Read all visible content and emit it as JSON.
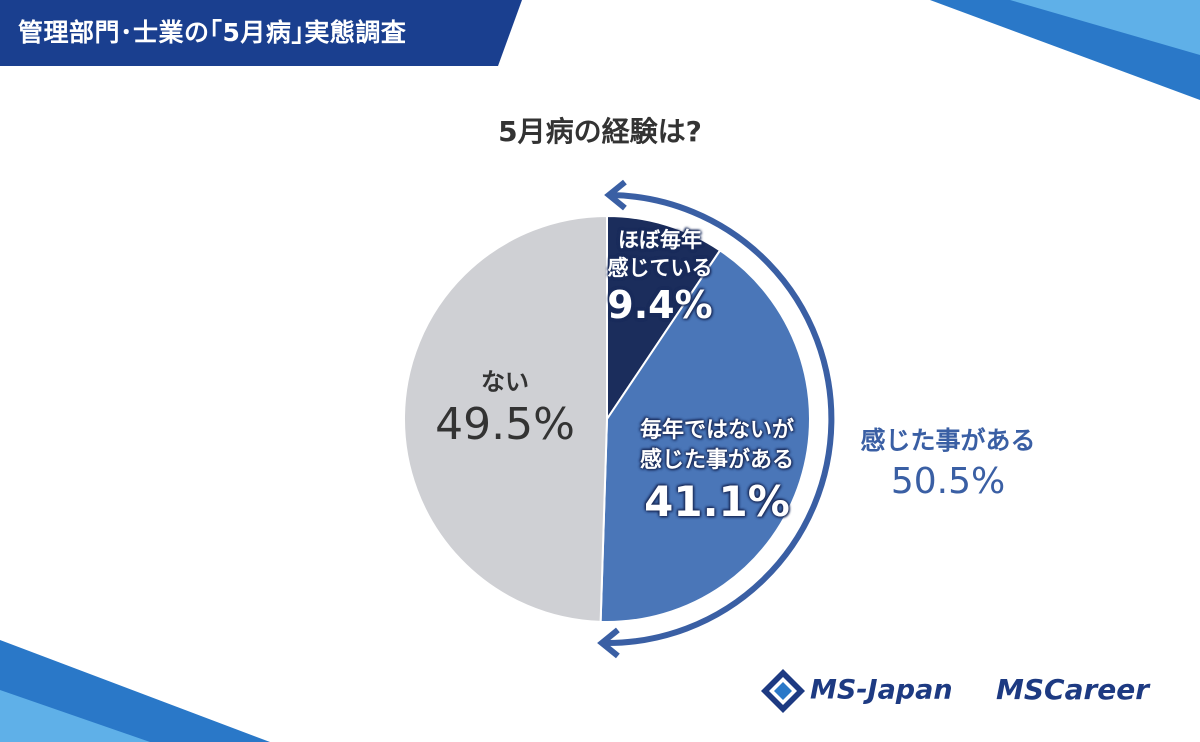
{
  "header": {
    "title": "管理部門･士業の｢5月病｣実態調査"
  },
  "chart_data": {
    "type": "pie",
    "title": "5月病の経験は?",
    "slices": [
      {
        "label": "ほぼ毎年感じている",
        "label_lines": [
          "ほぼ毎年",
          "感じている"
        ],
        "value": 9.4,
        "value_label": "9.4%",
        "color": "#1b2d5c"
      },
      {
        "label": "毎年ではないが感じた事がある",
        "label_lines": [
          "毎年ではないが",
          "感じた事がある"
        ],
        "value": 41.1,
        "value_label": "41.1%",
        "color": "#4a76b8"
      },
      {
        "label": "ない",
        "label_lines": [
          "ない"
        ],
        "value": 49.5,
        "value_label": "49.5%",
        "color": "#cfd0d4"
      }
    ],
    "group_annotation": {
      "label": "感じた事がある",
      "value": 50.5,
      "value_label": "50.5%",
      "color": "#3a5fa4"
    }
  },
  "logos": {
    "ms_japan": "MS-Japan",
    "ms_career": "MSCareer"
  }
}
